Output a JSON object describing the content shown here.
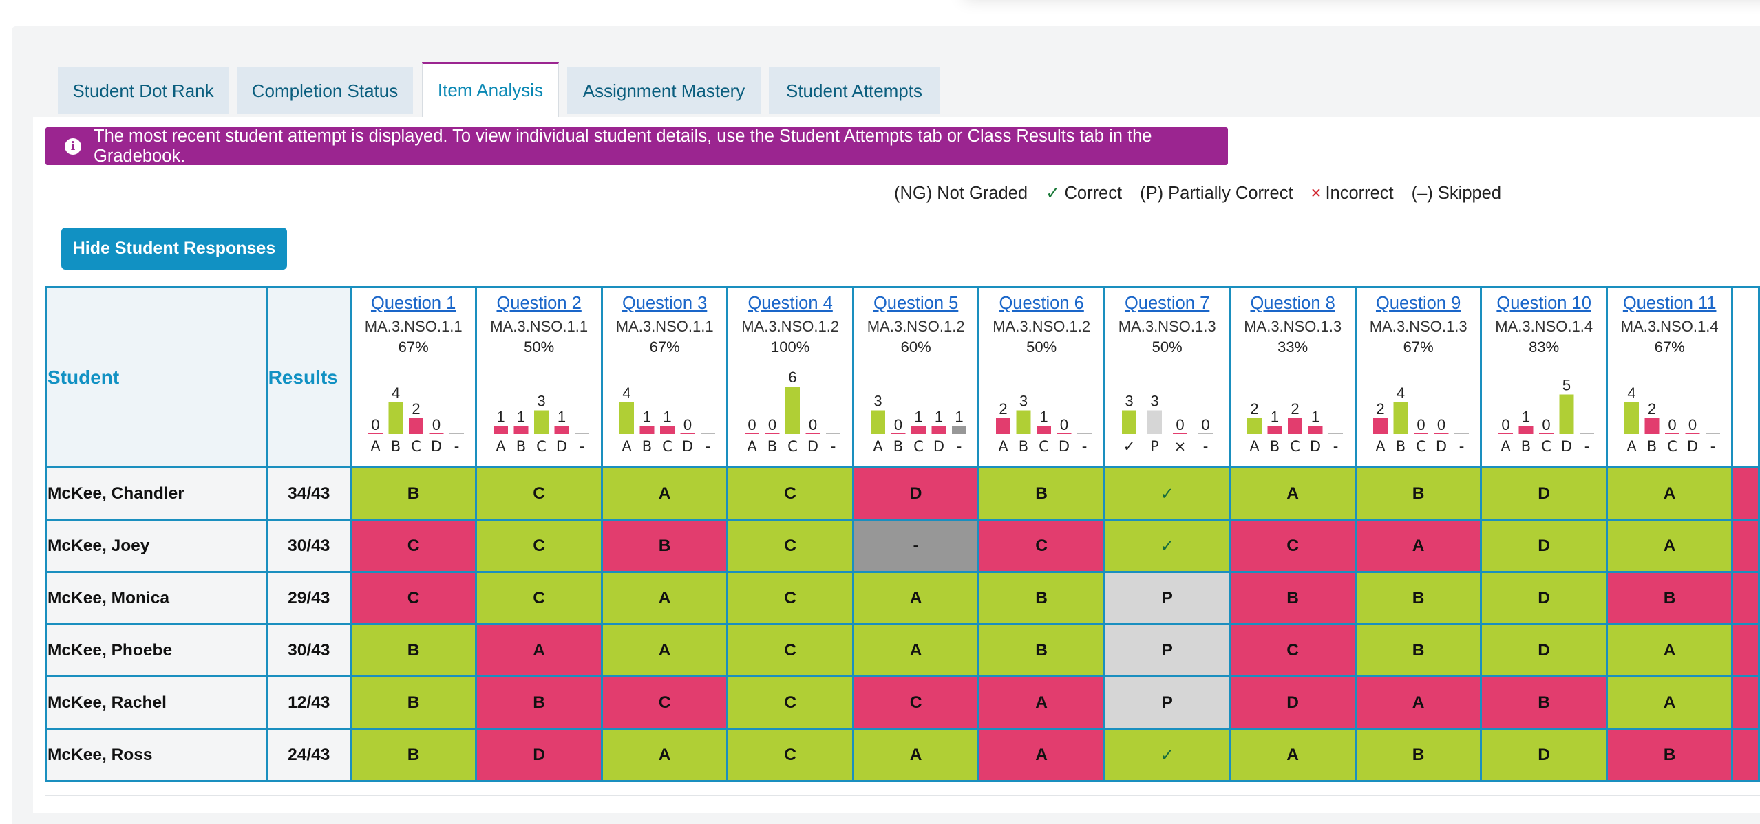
{
  "tabs": [
    {
      "label": "Student Dot Rank",
      "active": false
    },
    {
      "label": "Completion Status",
      "active": false
    },
    {
      "label": "Item Analysis",
      "active": true
    },
    {
      "label": "Assignment Mastery",
      "active": false
    },
    {
      "label": "Student Attempts",
      "active": false
    }
  ],
  "banner": {
    "icon": "info-icon",
    "text": "The most recent student attempt is displayed. To view individual student details, use the Student Attempts tab or Class Results tab in the Gradebook."
  },
  "legend": [
    {
      "glyph": "",
      "label": "(NG) Not Graded"
    },
    {
      "glyph": "✓",
      "label": "Correct"
    },
    {
      "glyph": "",
      "label": "(P) Partially Correct"
    },
    {
      "glyph": "×",
      "label": "Incorrect"
    },
    {
      "glyph": "",
      "label": "(–) Skipped"
    }
  ],
  "hide_button_label": "Hide Student Responses",
  "table": {
    "student_header": "Student",
    "results_header": "Results",
    "questions": [
      {
        "label": "Question 1",
        "standard": "MA.3.NSO.1.1",
        "percent": "67%"
      },
      {
        "label": "Question 2",
        "standard": "MA.3.NSO.1.1",
        "percent": "50%"
      },
      {
        "label": "Question 3",
        "standard": "MA.3.NSO.1.1",
        "percent": "67%"
      },
      {
        "label": "Question 4",
        "standard": "MA.3.NSO.1.2",
        "percent": "100%"
      },
      {
        "label": "Question 5",
        "standard": "MA.3.NSO.1.2",
        "percent": "60%"
      },
      {
        "label": "Question 6",
        "standard": "MA.3.NSO.1.2",
        "percent": "50%"
      },
      {
        "label": "Question 7",
        "standard": "MA.3.NSO.1.3",
        "percent": "50%"
      },
      {
        "label": "Question 8",
        "standard": "MA.3.NSO.1.3",
        "percent": "33%"
      },
      {
        "label": "Question 9",
        "standard": "MA.3.NSO.1.3",
        "percent": "67%"
      },
      {
        "label": "Question 10",
        "standard": "MA.3.NSO.1.4",
        "percent": "83%"
      },
      {
        "label": "Question 11",
        "standard": "MA.3.NSO.1.4",
        "percent": "67%"
      }
    ],
    "students": [
      {
        "name": "McKee, Chandler",
        "result": "34/43",
        "responses": [
          {
            "v": "B",
            "s": "g"
          },
          {
            "v": "C",
            "s": "g"
          },
          {
            "v": "A",
            "s": "g"
          },
          {
            "v": "C",
            "s": "g"
          },
          {
            "v": "D",
            "s": "r"
          },
          {
            "v": "B",
            "s": "g"
          },
          {
            "v": "✓",
            "s": "g"
          },
          {
            "v": "A",
            "s": "g"
          },
          {
            "v": "B",
            "s": "g"
          },
          {
            "v": "D",
            "s": "g"
          },
          {
            "v": "A",
            "s": "g"
          }
        ]
      },
      {
        "name": "McKee, Joey",
        "result": "30/43",
        "responses": [
          {
            "v": "C",
            "s": "r"
          },
          {
            "v": "C",
            "s": "g"
          },
          {
            "v": "B",
            "s": "r"
          },
          {
            "v": "C",
            "s": "g"
          },
          {
            "v": "-",
            "s": "s"
          },
          {
            "v": "C",
            "s": "r"
          },
          {
            "v": "✓",
            "s": "g"
          },
          {
            "v": "C",
            "s": "r"
          },
          {
            "v": "A",
            "s": "r"
          },
          {
            "v": "D",
            "s": "g"
          },
          {
            "v": "A",
            "s": "g"
          }
        ]
      },
      {
        "name": "McKee, Monica",
        "result": "29/43",
        "responses": [
          {
            "v": "C",
            "s": "r"
          },
          {
            "v": "C",
            "s": "g"
          },
          {
            "v": "A",
            "s": "g"
          },
          {
            "v": "C",
            "s": "g"
          },
          {
            "v": "A",
            "s": "g"
          },
          {
            "v": "B",
            "s": "g"
          },
          {
            "v": "P",
            "s": "p"
          },
          {
            "v": "B",
            "s": "r"
          },
          {
            "v": "B",
            "s": "g"
          },
          {
            "v": "D",
            "s": "g"
          },
          {
            "v": "B",
            "s": "r"
          }
        ]
      },
      {
        "name": "McKee, Phoebe",
        "result": "30/43",
        "responses": [
          {
            "v": "B",
            "s": "g"
          },
          {
            "v": "A",
            "s": "r"
          },
          {
            "v": "A",
            "s": "g"
          },
          {
            "v": "C",
            "s": "g"
          },
          {
            "v": "A",
            "s": "g"
          },
          {
            "v": "B",
            "s": "g"
          },
          {
            "v": "P",
            "s": "p"
          },
          {
            "v": "C",
            "s": "r"
          },
          {
            "v": "B",
            "s": "g"
          },
          {
            "v": "D",
            "s": "g"
          },
          {
            "v": "A",
            "s": "g"
          }
        ]
      },
      {
        "name": "McKee, Rachel",
        "result": "12/43",
        "responses": [
          {
            "v": "B",
            "s": "g"
          },
          {
            "v": "B",
            "s": "r"
          },
          {
            "v": "C",
            "s": "r"
          },
          {
            "v": "C",
            "s": "g"
          },
          {
            "v": "C",
            "s": "r"
          },
          {
            "v": "A",
            "s": "r"
          },
          {
            "v": "P",
            "s": "p"
          },
          {
            "v": "D",
            "s": "r"
          },
          {
            "v": "A",
            "s": "r"
          },
          {
            "v": "B",
            "s": "r"
          },
          {
            "v": "A",
            "s": "g"
          }
        ]
      },
      {
        "name": "McKee, Ross",
        "result": "24/43",
        "responses": [
          {
            "v": "B",
            "s": "g"
          },
          {
            "v": "D",
            "s": "r"
          },
          {
            "v": "A",
            "s": "g"
          },
          {
            "v": "C",
            "s": "g"
          },
          {
            "v": "A",
            "s": "g"
          },
          {
            "v": "A",
            "s": "r"
          },
          {
            "v": "✓",
            "s": "g"
          },
          {
            "v": "A",
            "s": "g"
          },
          {
            "v": "B",
            "s": "g"
          },
          {
            "v": "D",
            "s": "g"
          },
          {
            "v": "B",
            "s": "r"
          }
        ]
      }
    ]
  },
  "colors": {
    "correct": "#b0cf35",
    "incorrect": "#e23d6e",
    "partial": "#d6d6d6",
    "skipped": "#979797",
    "accent": "#1191c3",
    "banner": "#9b2590"
  },
  "chart_data": [
    {
      "type": "bar",
      "question": "Question 1",
      "categories": [
        "A",
        "B",
        "C",
        "D",
        "-"
      ],
      "values": [
        0,
        4,
        2,
        0,
        null
      ],
      "correct": [
        "B"
      ]
    },
    {
      "type": "bar",
      "question": "Question 2",
      "categories": [
        "A",
        "B",
        "C",
        "D",
        "-"
      ],
      "values": [
        1,
        1,
        3,
        1,
        null
      ],
      "correct": [
        "C"
      ]
    },
    {
      "type": "bar",
      "question": "Question 3",
      "categories": [
        "A",
        "B",
        "C",
        "D",
        "-"
      ],
      "values": [
        4,
        1,
        1,
        0,
        null
      ],
      "correct": [
        "A"
      ]
    },
    {
      "type": "bar",
      "question": "Question 4",
      "categories": [
        "A",
        "B",
        "C",
        "D",
        "-"
      ],
      "values": [
        0,
        0,
        6,
        0,
        null
      ],
      "correct": [
        "C"
      ]
    },
    {
      "type": "bar",
      "question": "Question 5",
      "categories": [
        "A",
        "B",
        "C",
        "D",
        "-"
      ],
      "values": [
        3,
        0,
        1,
        1,
        1
      ],
      "correct": [
        "A"
      ]
    },
    {
      "type": "bar",
      "question": "Question 6",
      "categories": [
        "A",
        "B",
        "C",
        "D",
        "-"
      ],
      "values": [
        2,
        3,
        1,
        0,
        null
      ],
      "correct": [
        "B"
      ]
    },
    {
      "type": "bar",
      "question": "Question 7",
      "categories": [
        "✓",
        "P",
        "×",
        "-"
      ],
      "values": [
        3,
        3,
        0,
        0
      ],
      "correct": [
        "✓"
      ]
    },
    {
      "type": "bar",
      "question": "Question 8",
      "categories": [
        "A",
        "B",
        "C",
        "D",
        "-"
      ],
      "values": [
        2,
        1,
        2,
        1,
        null
      ],
      "correct": [
        "A"
      ]
    },
    {
      "type": "bar",
      "question": "Question 9",
      "categories": [
        "A",
        "B",
        "C",
        "D",
        "-"
      ],
      "values": [
        2,
        4,
        0,
        0,
        null
      ],
      "correct": [
        "B"
      ]
    },
    {
      "type": "bar",
      "question": "Question 10",
      "categories": [
        "A",
        "B",
        "C",
        "D",
        "-"
      ],
      "values": [
        0,
        1,
        0,
        5,
        null
      ],
      "correct": [
        "D"
      ]
    },
    {
      "type": "bar",
      "question": "Question 11",
      "categories": [
        "A",
        "B",
        "C",
        "D",
        "-"
      ],
      "values": [
        4,
        2,
        0,
        0,
        null
      ],
      "correct": [
        "A"
      ]
    }
  ]
}
